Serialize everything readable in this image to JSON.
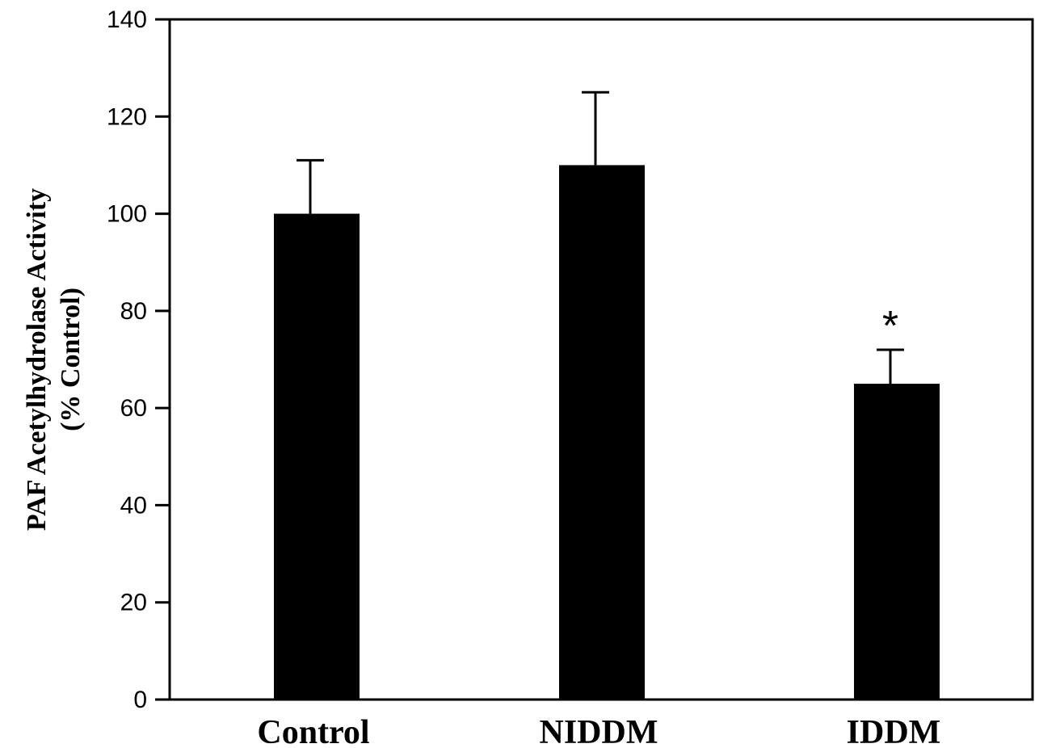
{
  "chart_data": {
    "type": "bar",
    "categories": [
      "Control",
      "NIDDM",
      "IDDM"
    ],
    "values": [
      100,
      110,
      65
    ],
    "error_upper": [
      111,
      125,
      72
    ],
    "annotations": [
      {
        "category": "IDDM",
        "text": "*"
      }
    ],
    "title": "",
    "xlabel": "",
    "ylabel_line1": "PAF Acetylhydrolase Activity",
    "ylabel_line2": "(% Control)",
    "ylim": [
      0,
      140
    ],
    "yticks": [
      0,
      20,
      40,
      60,
      80,
      100,
      120,
      140
    ],
    "grid": false,
    "legend": "none",
    "bar_color": "#000000"
  }
}
